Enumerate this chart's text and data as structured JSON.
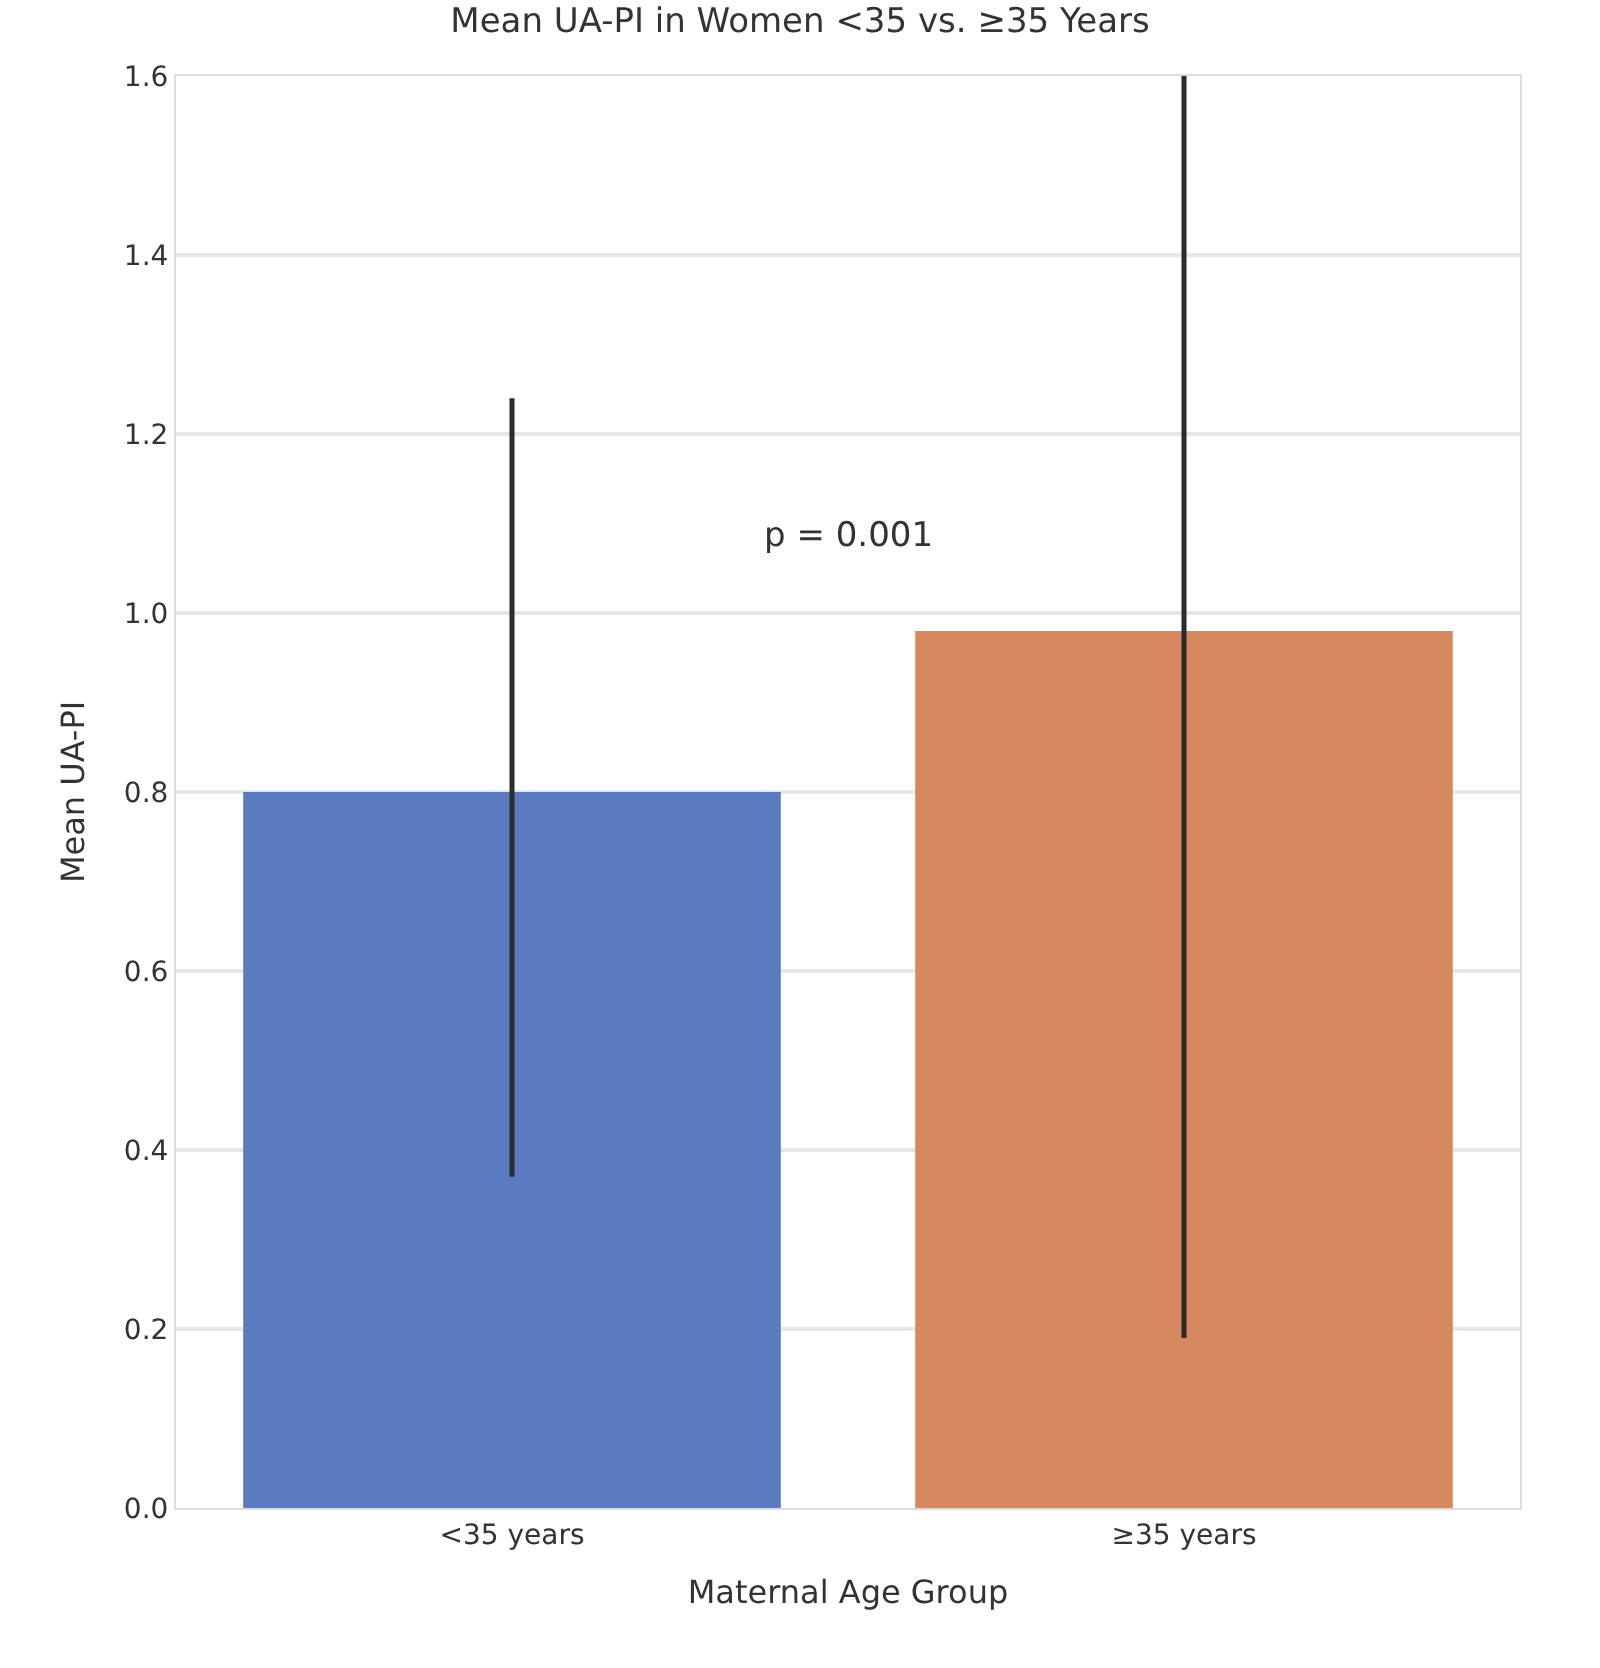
{
  "chart_data": {
    "type": "bar",
    "title": "Mean UA-PI in Women <35 vs. ≥35 Years",
    "xlabel": "Maternal Age Group",
    "ylabel": "Mean UA-PI",
    "categories": [
      "<35 years",
      "≥35 years"
    ],
    "values": [
      0.8,
      0.98
    ],
    "colors": [
      "#5a7bbf",
      "#d5895d"
    ],
    "errors": [
      [
        0.37,
        1.24
      ],
      [
        0.19,
        1.6
      ]
    ],
    "ylim": [
      0,
      1.6
    ],
    "yticks": [
      {
        "value": 0,
        "label": "0.0"
      },
      {
        "value": 0.2,
        "label": "0.2"
      },
      {
        "value": 0.4,
        "label": "0.4"
      },
      {
        "value": 0.6,
        "label": "0.6"
      },
      {
        "value": 0.8,
        "label": "0.8"
      },
      {
        "value": 1.0,
        "label": "1.0"
      },
      {
        "value": 1.2,
        "label": "1.2"
      },
      {
        "value": 1.4,
        "label": "1.4"
      },
      {
        "value": 1.6,
        "label": "1.6"
      }
    ],
    "annotations": [
      "p = 0.001"
    ],
    "grid": "y"
  }
}
